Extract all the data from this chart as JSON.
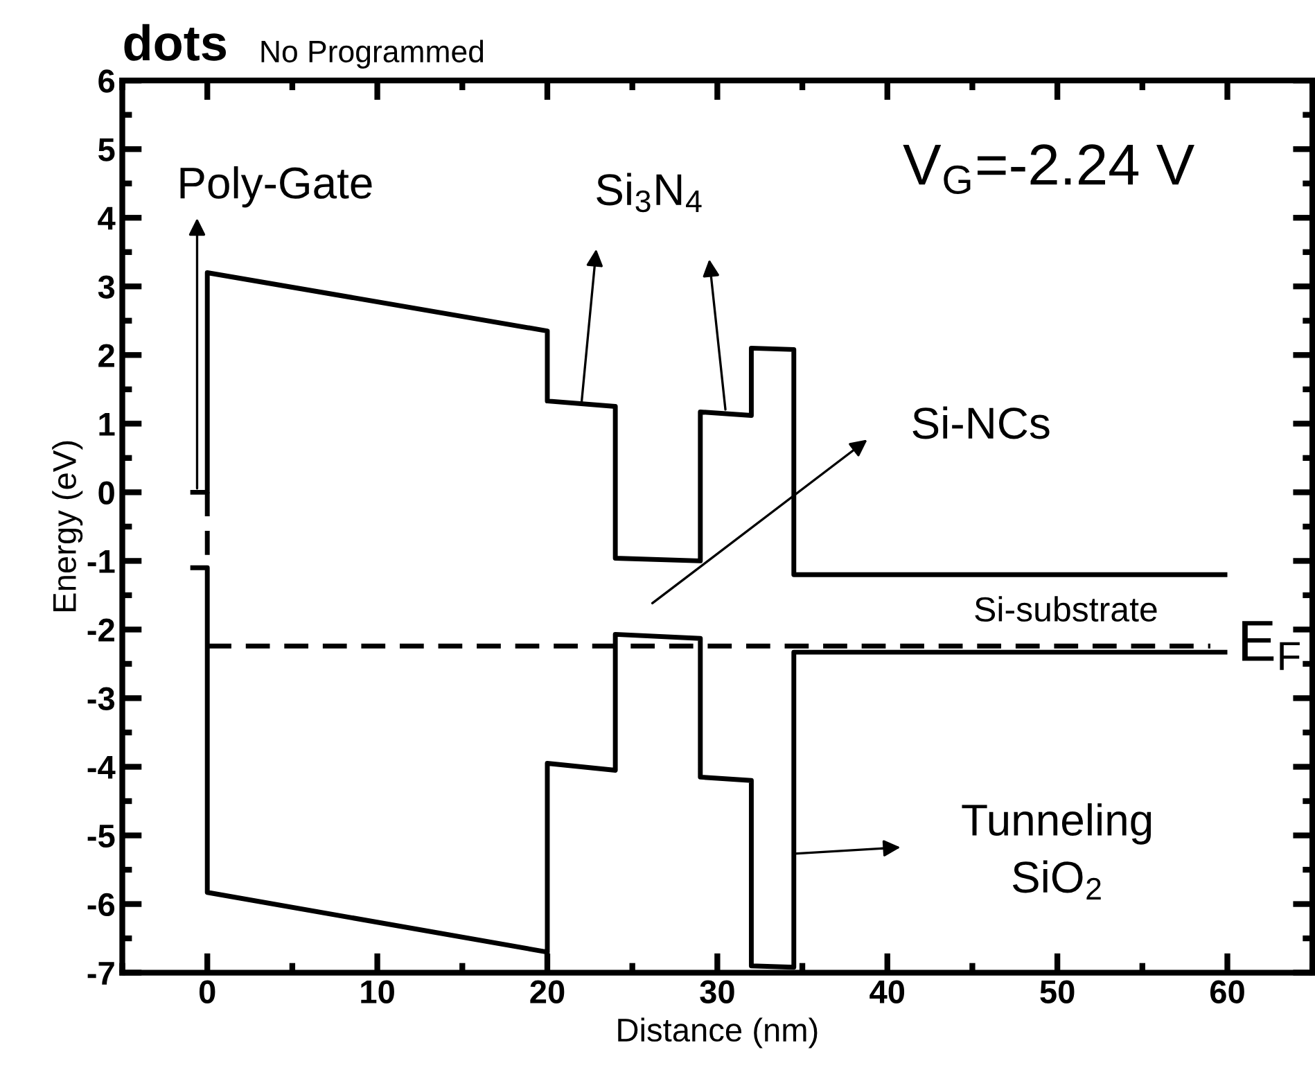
{
  "chart_data": {
    "type": "line",
    "title": "dots",
    "subtitle": "No Programmed",
    "xlabel": "Distance (nm)",
    "ylabel": "Energy (eV)",
    "xlim": [
      -5,
      65
    ],
    "xticks": [
      0,
      10,
      20,
      30,
      40,
      50,
      60
    ],
    "ylim": [
      -7,
      6
    ],
    "yticks": [
      -7,
      -6,
      -5,
      -4,
      -3,
      -2,
      -1,
      0,
      1,
      2,
      3,
      4,
      5,
      6
    ],
    "grid": false,
    "marker": "none",
    "series": [
      {
        "color": "#000000",
        "line_style": "solid",
        "x": [
          -1,
          0,
          0,
          20,
          20,
          24,
          24,
          29,
          29,
          32,
          32,
          34.5,
          34.5,
          60
        ],
        "values": [
          0,
          0,
          3.2,
          2.35,
          1.33,
          1.25,
          -0.96,
          -1.0,
          1.17,
          1.12,
          2.1,
          2.08,
          -1.2,
          -1.2
        ]
      },
      {
        "color": "#000000",
        "line_style": "dashed",
        "x": [
          0,
          0
        ],
        "values": [
          0,
          -1.1
        ]
      },
      {
        "color": "#000000",
        "line_style": "solid",
        "x": [
          -1,
          0,
          0,
          20,
          20,
          24,
          24,
          29,
          29,
          32,
          32,
          34.5,
          34.5,
          60
        ],
        "values": [
          -1.1,
          -1.1,
          -5.83,
          -6.7,
          -3.95,
          -4.05,
          -2.07,
          -2.13,
          -4.15,
          -4.2,
          -6.9,
          -6.92,
          -2.33,
          -2.33
        ]
      },
      {
        "name": "E$_{F}$",
        "color": "#000000",
        "line_style": "dashed",
        "x": [
          0,
          59
        ],
        "values": [
          -2.24,
          -2.24
        ]
      }
    ],
    "annotations": [
      {
        "text": "Poly-Gate",
        "x": -0.6,
        "y": 0
      },
      {
        "text": "Si$_{3}$N$_{4}$",
        "x": 22,
        "y": 1.27
      },
      "Si-NCs",
      "Si-substrate",
      "Tunneling\nSiO$_{2}$",
      "V$_{G}$=-2.24 V"
    ]
  }
}
